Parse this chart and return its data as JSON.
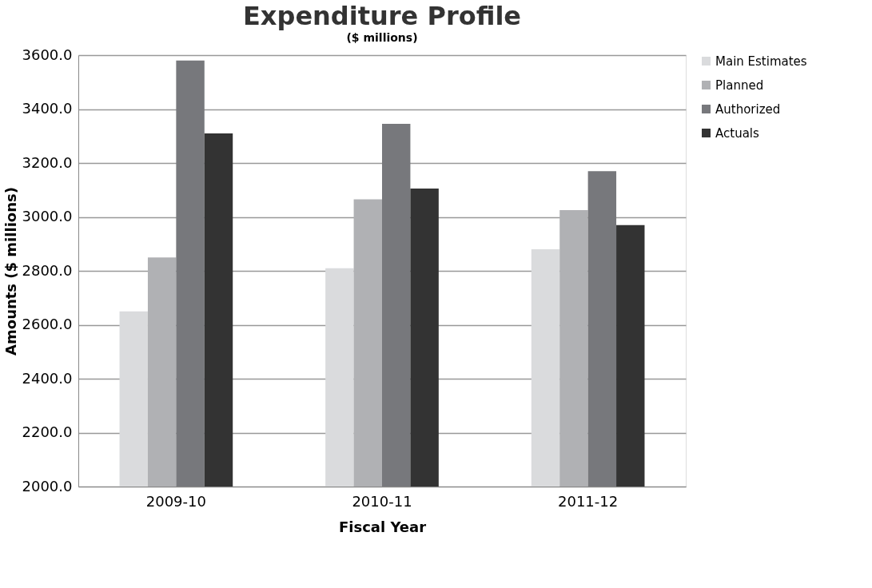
{
  "chart_data": {
    "type": "bar",
    "title": "Expenditure Profile",
    "xlabel": "Fiscal Year",
    "ylabel": "Amounts ($ millions)",
    "annotations": [
      "($ millions)"
    ],
    "categories": [
      "2009-10",
      "2010-11",
      "2011-12"
    ],
    "series": [
      {
        "name": "Main Estimates",
        "color": "#dadbdd",
        "values": [
          2650,
          2810,
          2880
        ]
      },
      {
        "name": "Planned",
        "color": "#b0b1b4",
        "values": [
          2850,
          3065,
          3025
        ]
      },
      {
        "name": "Authorized",
        "color": "#77787c",
        "values": [
          3580,
          3345,
          3170
        ]
      },
      {
        "name": "Actuals",
        "color": "#333333",
        "values": [
          3310,
          3105,
          2970
        ]
      }
    ],
    "ylim": [
      2000,
      3600
    ],
    "yticks": [
      {
        "value": 2000,
        "label": "2000.0"
      },
      {
        "value": 2200,
        "label": "2200.0"
      },
      {
        "value": 2400,
        "label": "2400.0"
      },
      {
        "value": 2600,
        "label": "2600.0"
      },
      {
        "value": 2800,
        "label": "2800.0"
      },
      {
        "value": 3000,
        "label": "3000.0"
      },
      {
        "value": 3200,
        "label": "3200.0"
      },
      {
        "value": 3400,
        "label": "3400.0"
      },
      {
        "value": 3600,
        "label": "3600.0"
      }
    ],
    "grid": "y",
    "legend": "right"
  }
}
